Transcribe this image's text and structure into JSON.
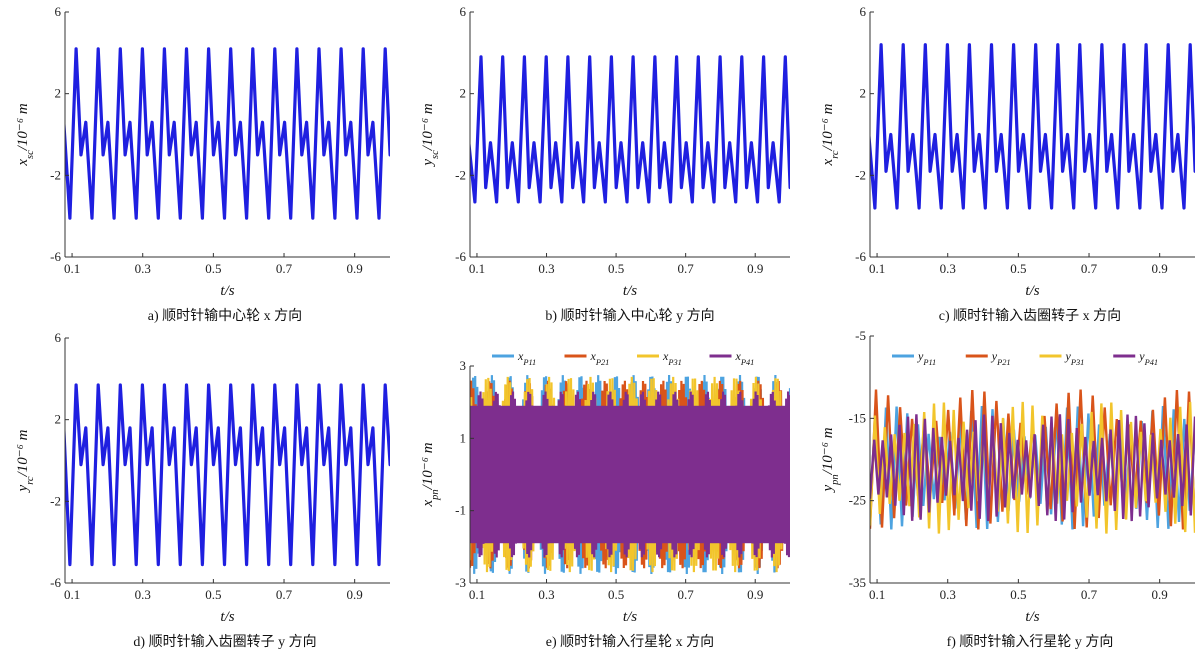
{
  "chart_data": [
    {
      "id": "a",
      "type": "line",
      "caption": "a) 顺时针输中心轮 x 方向",
      "xlabel": "t/s",
      "ylabel": "x_sc/10⁻⁶ m",
      "xlim": [
        0.08,
        1.0
      ],
      "ylim": [
        -6,
        6
      ],
      "xticks": [
        "0.1",
        "0.3",
        "0.5",
        "0.7",
        "0.9"
      ],
      "yticks": [
        "-6",
        "-2",
        "2",
        "6"
      ],
      "series": [
        {
          "color": "#1f1fe0",
          "period": 0.0625,
          "phase": 0.094,
          "wave": [
            [
              0,
              -4.1
            ],
            [
              0.28,
              4.2
            ],
            [
              0.5,
              -1.0
            ],
            [
              0.72,
              0.6
            ],
            [
              1.0,
              -4.1
            ]
          ]
        }
      ]
    },
    {
      "id": "b",
      "type": "line",
      "caption": "b) 顺时针输入中心轮 y 方向",
      "xlabel": "t/s",
      "ylabel": "y_sc/10⁻⁶ m",
      "xlim": [
        0.08,
        1.0
      ],
      "ylim": [
        -6,
        6
      ],
      "xticks": [
        "0.1",
        "0.3",
        "0.5",
        "0.7",
        "0.9"
      ],
      "yticks": [
        "-6",
        "-2",
        "2",
        "6"
      ],
      "series": [
        {
          "color": "#1f1fe0",
          "period": 0.0625,
          "phase": 0.094,
          "wave": [
            [
              0,
              -3.3
            ],
            [
              0.28,
              3.8
            ],
            [
              0.5,
              -2.6
            ],
            [
              0.72,
              -0.4
            ],
            [
              1.0,
              -3.3
            ]
          ]
        }
      ]
    },
    {
      "id": "c",
      "type": "line",
      "caption": "c) 顺时针输入齿圈转子 x 方向",
      "xlabel": "t/s",
      "ylabel": "x_rc/10⁻⁶ m",
      "xlim": [
        0.08,
        1.0
      ],
      "ylim": [
        -6,
        6
      ],
      "xticks": [
        "0.1",
        "0.3",
        "0.5",
        "0.7",
        "0.9"
      ],
      "yticks": [
        "-6",
        "-2",
        "2",
        "6"
      ],
      "series": [
        {
          "color": "#1f1fe0",
          "period": 0.0625,
          "phase": 0.094,
          "wave": [
            [
              0,
              -3.6
            ],
            [
              0.28,
              4.4
            ],
            [
              0.5,
              -1.8
            ],
            [
              0.72,
              0.0
            ],
            [
              1.0,
              -3.6
            ]
          ]
        }
      ]
    },
    {
      "id": "d",
      "type": "line",
      "caption": "d) 顺时针输入齿圈转子 y 方向",
      "xlabel": "t/s",
      "ylabel": "y_rc/10⁻⁶ m",
      "xlim": [
        0.08,
        1.0
      ],
      "ylim": [
        -6,
        6
      ],
      "xticks": [
        "0.1",
        "0.3",
        "0.5",
        "0.7",
        "0.9"
      ],
      "yticks": [
        "-6",
        "-2",
        "2",
        "6"
      ],
      "series": [
        {
          "color": "#1f1fe0",
          "period": 0.0625,
          "phase": 0.094,
          "wave": [
            [
              0,
              -5.1
            ],
            [
              0.28,
              3.7
            ],
            [
              0.5,
              -0.2
            ],
            [
              0.72,
              1.6
            ],
            [
              1.0,
              -5.1
            ]
          ]
        }
      ]
    },
    {
      "id": "e",
      "type": "line",
      "caption": "e) 顺时针输入行星轮 x 方向",
      "xlabel": "t/s",
      "ylabel": "x_pn/10⁻⁶ m",
      "xlim": [
        0.08,
        1.0
      ],
      "ylim": [
        -3,
        3
      ],
      "xticks": [
        "0.1",
        "0.3",
        "0.5",
        "0.7",
        "0.9"
      ],
      "yticks": [
        "-3",
        "-1",
        "1",
        "3"
      ],
      "legend": [
        "x_P11",
        "x_P21",
        "x_P31",
        "x_P41"
      ],
      "dense": true,
      "series": [
        {
          "name": "x_P11",
          "color": "#4da3e0",
          "amp": 2.75,
          "offset": 0.0,
          "period": 0.006
        },
        {
          "name": "x_P21",
          "color": "#d9541a",
          "amp": 2.6,
          "offset": 0.0,
          "period": 0.0065
        },
        {
          "name": "x_P31",
          "color": "#f2c52c",
          "amp": 2.7,
          "offset": 0.0,
          "period": 0.007
        },
        {
          "name": "x_P41",
          "color": "#7e2e8e",
          "amp": 2.3,
          "offset": 0.0,
          "period": 0.0055
        }
      ]
    },
    {
      "id": "f",
      "type": "line",
      "caption": "f) 顺时针输入行星轮 y 方向",
      "xlabel": "t/s",
      "ylabel": "y_pn/10⁻⁶ m",
      "xlim": [
        0.08,
        1.0
      ],
      "ylim": [
        -35,
        -5
      ],
      "xticks": [
        "0.1",
        "0.3",
        "0.5",
        "0.7",
        "0.9"
      ],
      "yticks": [
        "-35",
        "-25",
        "-15",
        "-5"
      ],
      "legend": [
        "y_P11",
        "y_P21",
        "y_P31",
        "y_P41"
      ],
      "dense": true,
      "series": [
        {
          "name": "y_P11",
          "color": "#4da3e0",
          "amp": 7.5,
          "offset": -21,
          "period": 0.03
        },
        {
          "name": "y_P21",
          "color": "#d9541a",
          "amp": 8.5,
          "offset": -20,
          "period": 0.034
        },
        {
          "name": "y_P31",
          "color": "#f2c52c",
          "amp": 8.0,
          "offset": -21,
          "period": 0.028
        },
        {
          "name": "y_P41",
          "color": "#7e2e8e",
          "amp": 6.5,
          "offset": -21,
          "period": 0.024
        }
      ]
    }
  ]
}
